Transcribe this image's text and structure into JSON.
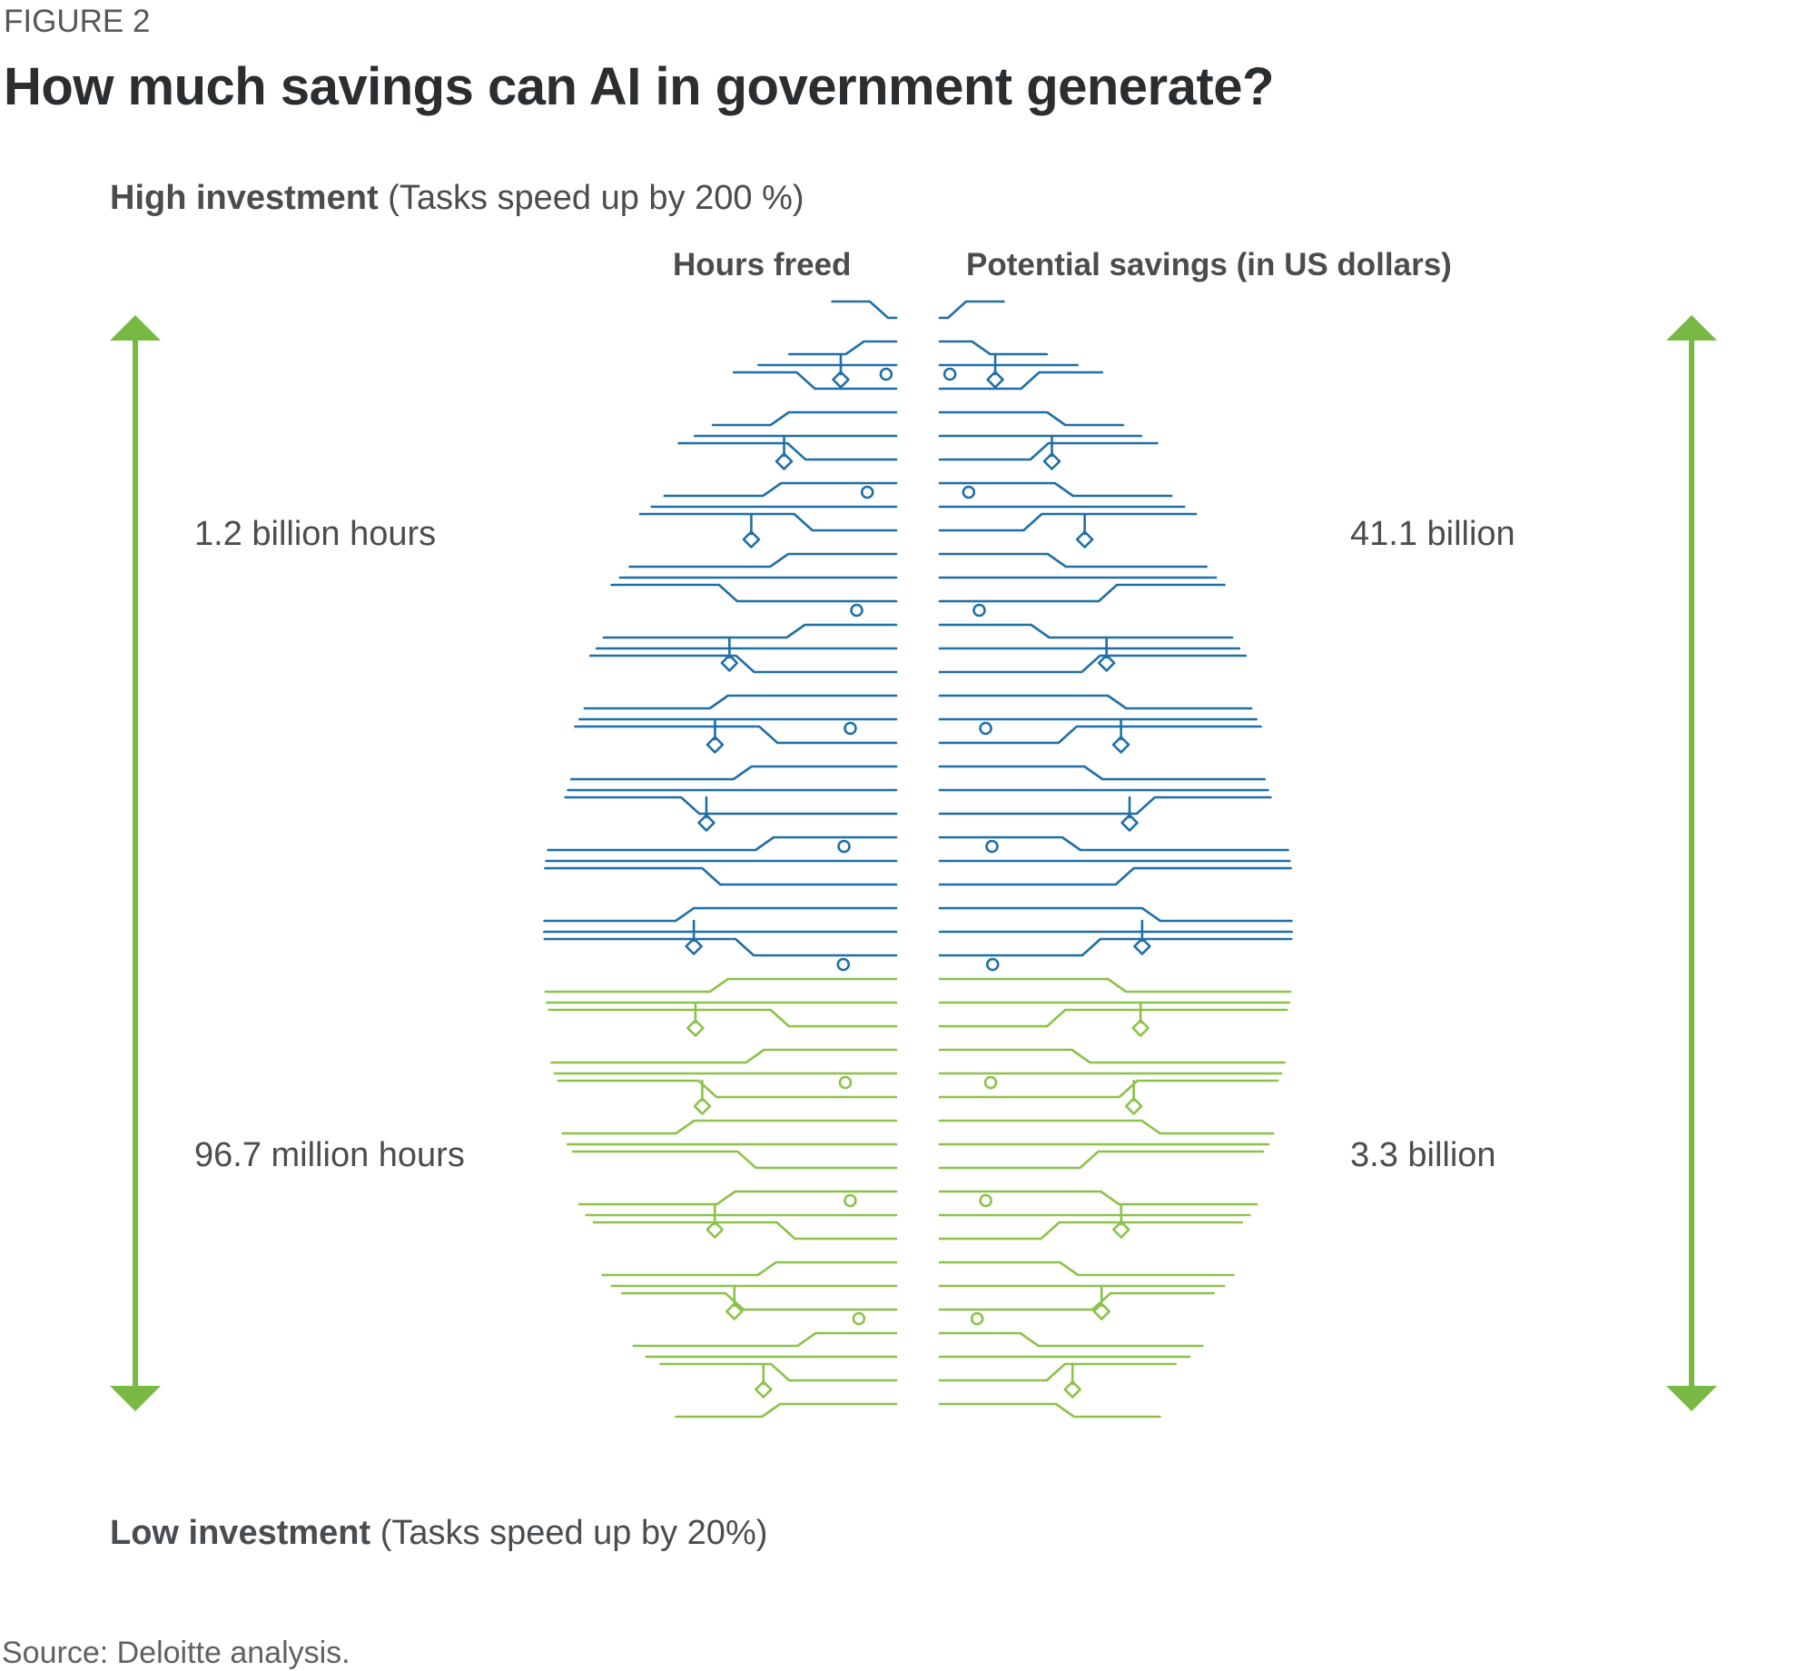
{
  "figure_label": "FIGURE 2",
  "title": "How much savings can AI in government generate?",
  "high_investment": {
    "label": "High investment",
    "detail": "(Tasks speed up by 200 %)"
  },
  "low_investment": {
    "label": "Low investment",
    "detail": "(Tasks speed up by 20%)"
  },
  "columns": {
    "hours": "Hours freed",
    "savings": "Potential savings (in US dollars)"
  },
  "values": {
    "hours_high": "1.2 billion hours",
    "hours_low": "96.7 million hours",
    "savings_high": "41.1 billion",
    "savings_low": "3.3 billion"
  },
  "source": "Source: Deloitte analysis.",
  "colors": {
    "blue_circuit": "#1f6fa6",
    "green_circuit": "#8cc24a",
    "arrow": "#78b943",
    "text": "#4a4d50"
  },
  "icons": [
    "double-arrow-icon",
    "circuit-brain-icon"
  ]
}
